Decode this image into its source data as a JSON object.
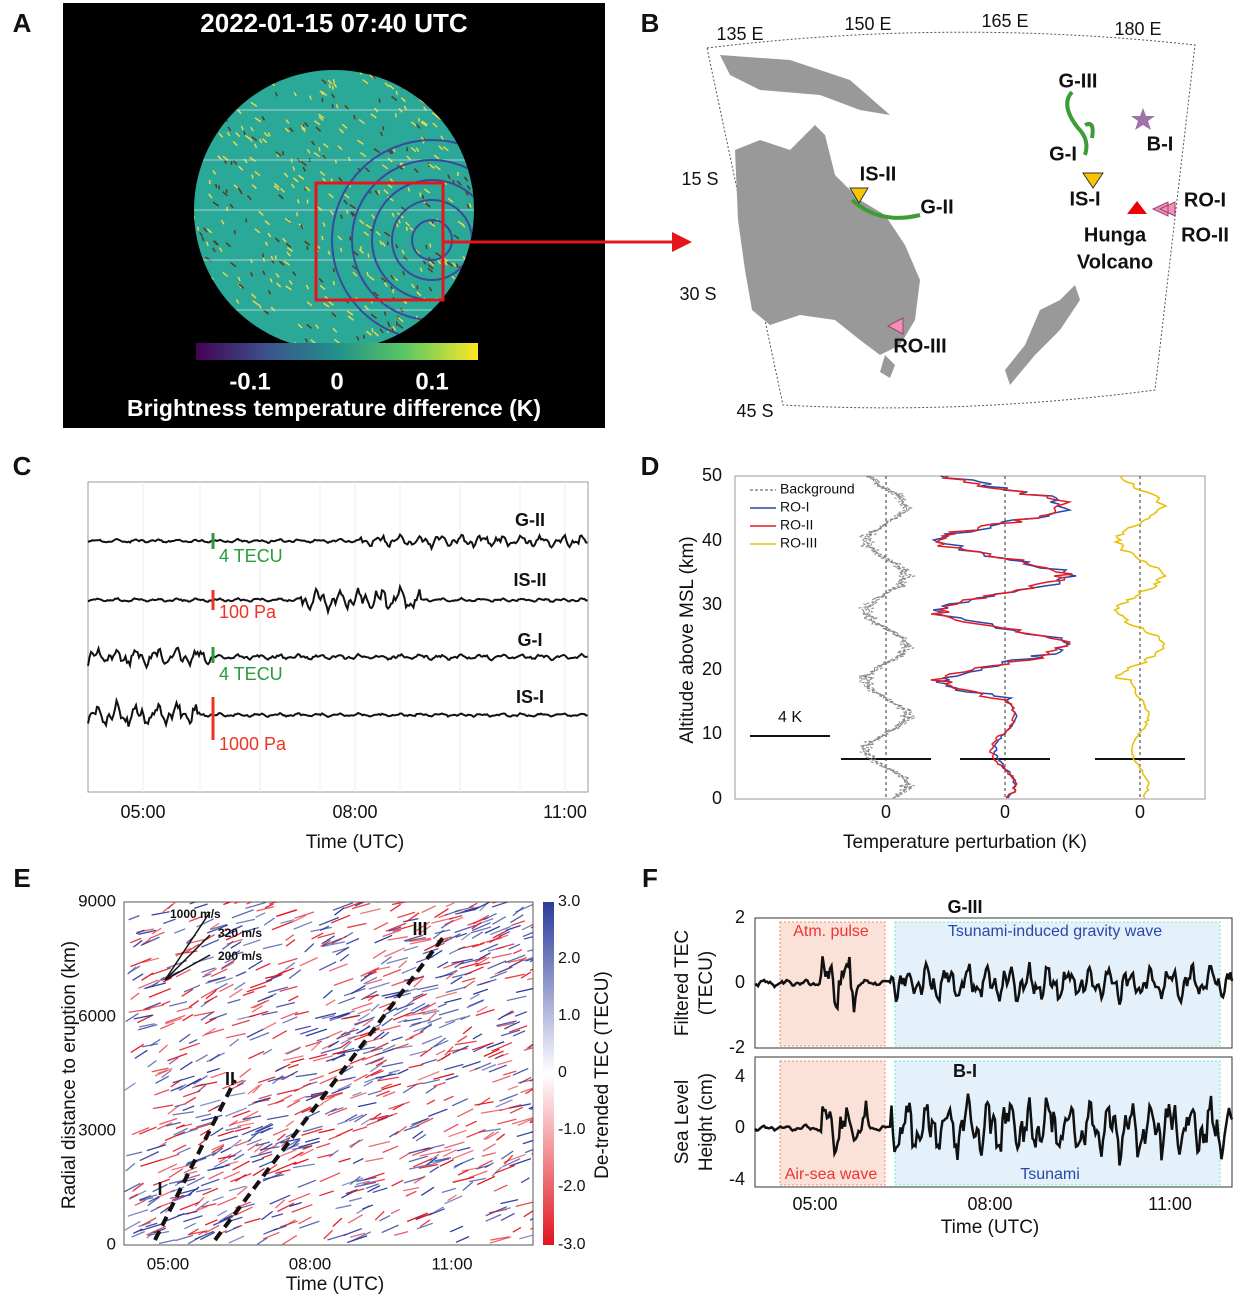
{
  "panels": {
    "a": {
      "letter": "A",
      "title": "2022-01-15 07:40 UTC",
      "colorbar_ticks": [
        "-0.1",
        "0",
        "0.1"
      ],
      "colorbar_label": "Brightness temperature difference (K)"
    },
    "b": {
      "letter": "B",
      "lon_labels": [
        "135 E",
        "150 E",
        "165 E",
        "180 E"
      ],
      "lat_labels": [
        "15 S",
        "30 S",
        "45 S"
      ],
      "sites": [
        "G-III",
        "G-I",
        "IS-I",
        "IS-II",
        "G-II",
        "B-I",
        "RO-I",
        "RO-II",
        "RO-III"
      ],
      "volcano": [
        "Hunga",
        "Volcano"
      ]
    },
    "c": {
      "letter": "C",
      "traces": [
        "G-II",
        "IS-II",
        "G-I",
        "IS-I"
      ],
      "scales": [
        "4 TECU",
        "100 Pa",
        "4 TECU",
        "1000 Pa"
      ],
      "xticks": [
        "05:00",
        "08:00",
        "11:00"
      ],
      "xlabel": "Time (UTC)"
    },
    "d": {
      "letter": "D",
      "yticks": [
        "0",
        "10",
        "20",
        "30",
        "40",
        "50"
      ],
      "ylabel": "Altitude above MSL (km)",
      "xticks": [
        "0",
        "0",
        "0"
      ],
      "xlabel": "Temperature perturbation (K)",
      "legend": [
        "Background",
        "RO-I",
        "RO-II",
        "RO-III"
      ],
      "scale": "4 K"
    },
    "e": {
      "letter": "E",
      "yticks": [
        "0",
        "3000",
        "6000",
        "9000"
      ],
      "ylabel": "Radial distance to eruption (km)",
      "xticks": [
        "05:00",
        "08:00",
        "11:00"
      ],
      "xlabel": "Time (UTC)",
      "colorbar_ticks": [
        "3.0",
        "2.0",
        "1.0",
        "0",
        "-1.0",
        "-2.0",
        "-3.0"
      ],
      "colorbar_label": "De-trended TEC (TECU)",
      "speeds": [
        "1000 m/s",
        "320 m/s",
        "200 m/s"
      ],
      "branches": [
        "I",
        "II",
        "III"
      ]
    },
    "f": {
      "letter": "F",
      "top_yticks": [
        "2",
        "0",
        "-2"
      ],
      "top_ylabel": [
        "Filtered TEC",
        "(TECU)"
      ],
      "bottom_yticks": [
        "4",
        "0",
        "-4"
      ],
      "bottom_ylabel": [
        "Sea Level",
        "Height (cm)"
      ],
      "xticks": [
        "05:00",
        "08:00",
        "11:00"
      ],
      "xlabel": "Time (UTC)",
      "top_station": "G-III",
      "bottom_station": "B-I",
      "top_boxes": [
        "Atm. pulse",
        "Tsunami-induced gravity wave"
      ],
      "bottom_boxes": [
        "Air-sea wave",
        "Tsunami"
      ]
    }
  }
}
